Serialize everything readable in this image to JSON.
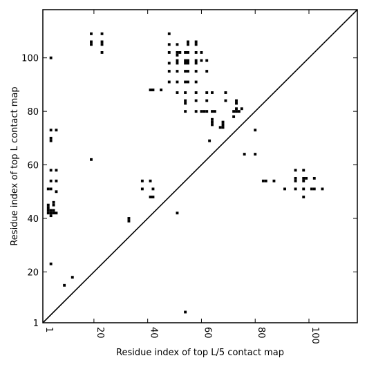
{
  "chart_data": {
    "type": "scatter",
    "xlabel": "Residue index of top L/5 contact map",
    "ylabel": "Residue index of top L contact map",
    "xlim": [
      1,
      118
    ],
    "ylim": [
      1,
      118
    ],
    "x_ticks": [
      1,
      20,
      40,
      60,
      80,
      100
    ],
    "y_ticks": [
      1,
      20,
      40,
      60,
      80,
      100
    ],
    "x_tick_labels": [
      "1",
      "20",
      "40",
      "60",
      "80",
      "100"
    ],
    "y_tick_labels": [
      "1",
      "20",
      "40",
      "60",
      "80",
      "100"
    ],
    "grid": false,
    "diagonal": true,
    "colors": {
      "marker": "#000000",
      "diagonal": "#000000",
      "frame": "#000000"
    },
    "points": [
      [
        4,
        100
      ],
      [
        4,
        73
      ],
      [
        6,
        73
      ],
      [
        4,
        70
      ],
      [
        4,
        69
      ],
      [
        4,
        58
      ],
      [
        6,
        58
      ],
      [
        4,
        54
      ],
      [
        6,
        54
      ],
      [
        3,
        51
      ],
      [
        4,
        51
      ],
      [
        6,
        50
      ],
      [
        3,
        45
      ],
      [
        3,
        44
      ],
      [
        3,
        43
      ],
      [
        4,
        43
      ],
      [
        5,
        43
      ],
      [
        3,
        42
      ],
      [
        4,
        42
      ],
      [
        5,
        42
      ],
      [
        6,
        42
      ],
      [
        4,
        41
      ],
      [
        5,
        46
      ],
      [
        5,
        45
      ],
      [
        4,
        23
      ],
      [
        9,
        15
      ],
      [
        12,
        18
      ],
      [
        19,
        62
      ],
      [
        19,
        109
      ],
      [
        23,
        109
      ],
      [
        19,
        106
      ],
      [
        19,
        105
      ],
      [
        23,
        106
      ],
      [
        23,
        105
      ],
      [
        23,
        102
      ],
      [
        33,
        40
      ],
      [
        33,
        39
      ],
      [
        38,
        54
      ],
      [
        38,
        51
      ],
      [
        41,
        54
      ],
      [
        42,
        51
      ],
      [
        41,
        48
      ],
      [
        42,
        48
      ],
      [
        41,
        88
      ],
      [
        42,
        88
      ],
      [
        45,
        88
      ],
      [
        51,
        42
      ],
      [
        54,
        5
      ],
      [
        48,
        109
      ],
      [
        48,
        105
      ],
      [
        48,
        102
      ],
      [
        48,
        98
      ],
      [
        48,
        95
      ],
      [
        48,
        91
      ],
      [
        51,
        105
      ],
      [
        51,
        102
      ],
      [
        52,
        102
      ],
      [
        51,
        101
      ],
      [
        51,
        99
      ],
      [
        51,
        98
      ],
      [
        51,
        95
      ],
      [
        51,
        91
      ],
      [
        51,
        87
      ],
      [
        54,
        102
      ],
      [
        55,
        102
      ],
      [
        54,
        99
      ],
      [
        55,
        99
      ],
      [
        54,
        98
      ],
      [
        55,
        98
      ],
      [
        54,
        95
      ],
      [
        55,
        95
      ],
      [
        54,
        91
      ],
      [
        55,
        91
      ],
      [
        54,
        87
      ],
      [
        54,
        84
      ],
      [
        54,
        83
      ],
      [
        54,
        80
      ],
      [
        55,
        106
      ],
      [
        55,
        105
      ],
      [
        58,
        106
      ],
      [
        58,
        105
      ],
      [
        58,
        102
      ],
      [
        58,
        99
      ],
      [
        58,
        98
      ],
      [
        58,
        95
      ],
      [
        58,
        91
      ],
      [
        58,
        87
      ],
      [
        58,
        84
      ],
      [
        58,
        80
      ],
      [
        60,
        102
      ],
      [
        60,
        99
      ],
      [
        60,
        80
      ],
      [
        61,
        80
      ],
      [
        62,
        80
      ],
      [
        62,
        99
      ],
      [
        62,
        95
      ],
      [
        62,
        87
      ],
      [
        62,
        84
      ],
      [
        63,
        69
      ],
      [
        64,
        87
      ],
      [
        64,
        80
      ],
      [
        65,
        80
      ],
      [
        64,
        77
      ],
      [
        64,
        76
      ],
      [
        64,
        75
      ],
      [
        67,
        74
      ],
      [
        68,
        74
      ],
      [
        68,
        76
      ],
      [
        68,
        75
      ],
      [
        69,
        87
      ],
      [
        69,
        84
      ],
      [
        72,
        80
      ],
      [
        73,
        80
      ],
      [
        74,
        80
      ],
      [
        72,
        78
      ],
      [
        73,
        84
      ],
      [
        73,
        83
      ],
      [
        73,
        81
      ],
      [
        75,
        81
      ],
      [
        76,
        64
      ],
      [
        80,
        73
      ],
      [
        80,
        64
      ],
      [
        83,
        54
      ],
      [
        84,
        54
      ],
      [
        87,
        54
      ],
      [
        91,
        51
      ],
      [
        95,
        58
      ],
      [
        95,
        55
      ],
      [
        95,
        54
      ],
      [
        95,
        51
      ],
      [
        98,
        58
      ],
      [
        98,
        55
      ],
      [
        99,
        55
      ],
      [
        98,
        54
      ],
      [
        98,
        51
      ],
      [
        98,
        48
      ],
      [
        101,
        51
      ],
      [
        102,
        51
      ],
      [
        102,
        55
      ],
      [
        105,
        51
      ]
    ]
  }
}
